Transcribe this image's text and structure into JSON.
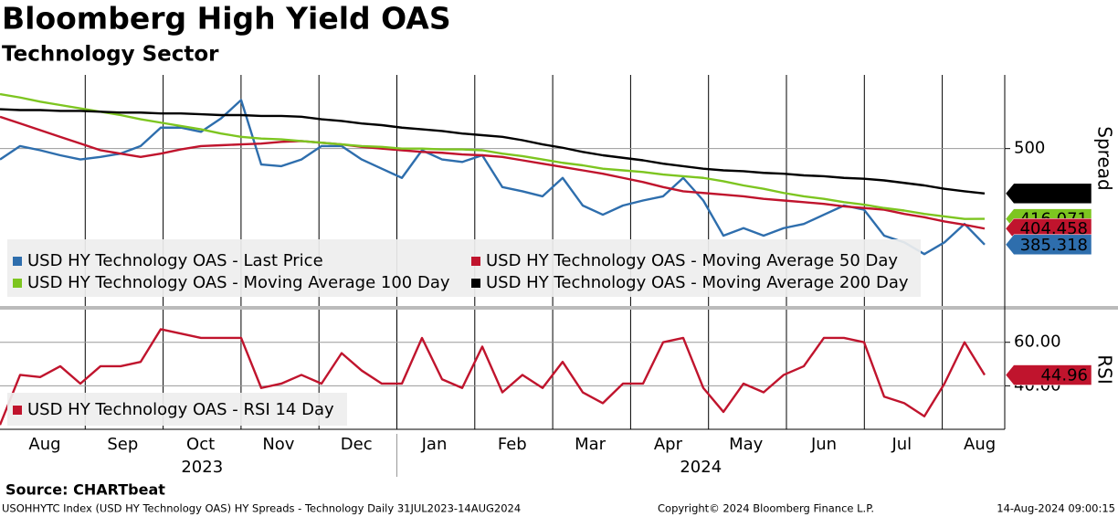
{
  "chart_data": [
    {
      "type": "line",
      "title": "Bloomberg High Yield OAS",
      "subtitle": "Technology Sector",
      "y_label": "Spread",
      "ylim": [
        312,
        588
      ],
      "yticks": [
        500
      ],
      "grid": true,
      "series": [
        {
          "name": "USD HY Technology OAS - Last Price",
          "color": "#2e6ead",
          "values": [
            487,
            503,
            498,
            492,
            487,
            490,
            494,
            503,
            525,
            525,
            520,
            536,
            558,
            481,
            479,
            487,
            503,
            503,
            487,
            476,
            465,
            498,
            487,
            484,
            492,
            454,
            449,
            443,
            465,
            432,
            421,
            432,
            438,
            443,
            465,
            438,
            396,
            405,
            396,
            405,
            410,
            421,
            432,
            427,
            396,
            388,
            374,
            388,
            410,
            385.318
          ]
        },
        {
          "name": "USD HY Technology OAS - Moving Average 50 Day",
          "color": "#c0142d",
          "values": [
            538,
            530,
            522,
            514,
            506,
            498,
            494,
            490,
            494,
            499,
            503,
            504,
            505,
            506,
            508,
            509,
            507,
            505,
            502,
            500,
            498,
            496,
            495,
            493,
            492,
            490,
            486,
            482,
            478,
            474,
            470,
            465,
            460,
            454,
            449,
            447,
            445,
            443,
            440,
            438,
            436,
            434,
            431,
            429,
            427,
            422,
            418,
            413,
            409,
            404.458
          ]
        },
        {
          "name": "USD HY Technology OAS - Moving Average 100 Day",
          "color": "#7dc520",
          "values": [
            565,
            561,
            556,
            552,
            548,
            544,
            540,
            535,
            531,
            527,
            523,
            518,
            514,
            512,
            511,
            509,
            507,
            505,
            503,
            502,
            500,
            500,
            499,
            499,
            498,
            494,
            491,
            487,
            483,
            480,
            476,
            474,
            472,
            469,
            467,
            465,
            461,
            456,
            452,
            447,
            443,
            440,
            436,
            433,
            429,
            426,
            422,
            419,
            416,
            416.071
          ]
        },
        {
          "name": "USD HY Technology OAS - Moving Average 200 Day",
          "color": "#000000",
          "values": [
            547,
            546,
            546,
            545,
            545,
            544,
            543,
            543,
            542,
            542,
            541,
            540,
            540,
            539,
            539,
            538,
            535,
            533,
            530,
            528,
            525,
            523,
            521,
            518,
            516,
            514,
            510,
            505,
            501,
            496,
            492,
            489,
            486,
            482,
            479,
            476,
            474,
            473,
            471,
            470,
            468,
            467,
            465,
            464,
            462,
            459,
            456,
            452,
            449,
            446.386
          ]
        }
      ]
    },
    {
      "type": "line",
      "y_label": "RSI",
      "ylim": [
        20,
        75
      ],
      "yticks": [
        {
          "value": 60,
          "label": "60.00"
        },
        {
          "value": 40,
          "label": "40.00"
        }
      ],
      "grid": true,
      "series": [
        {
          "name": "USD HY Technology OAS - RSI 14 Day",
          "color": "#c0142d",
          "values": [
            22,
            45,
            44,
            49,
            41,
            49,
            49,
            51,
            66,
            64,
            62,
            62,
            62,
            39,
            41,
            45,
            41,
            55,
            47,
            41,
            41,
            62,
            43,
            39,
            58,
            37,
            45,
            39,
            51,
            37,
            32,
            41,
            41,
            60,
            62,
            39,
            28,
            41,
            37,
            45,
            49,
            62,
            62,
            60,
            35,
            32,
            26,
            41,
            60,
            44.96
          ]
        }
      ]
    }
  ],
  "x_axis": {
    "months": [
      "Aug",
      "Sep",
      "Oct",
      "Nov",
      "Dec",
      "Jan",
      "Feb",
      "Mar",
      "Apr",
      "May",
      "Jun",
      "Jul",
      "Aug"
    ],
    "years": [
      "2023",
      "2024"
    ]
  },
  "source": "Source: CHARTbeat",
  "footer": [
    "USOHHYTC Index (USD HY Technology OAS) HY Spreads - Technology  Daily 31JUL2023-14AUG2024",
    "Copyright© 2024 Bloomberg Finance L.P.",
    "14-Aug-2024 09:00:15"
  ]
}
